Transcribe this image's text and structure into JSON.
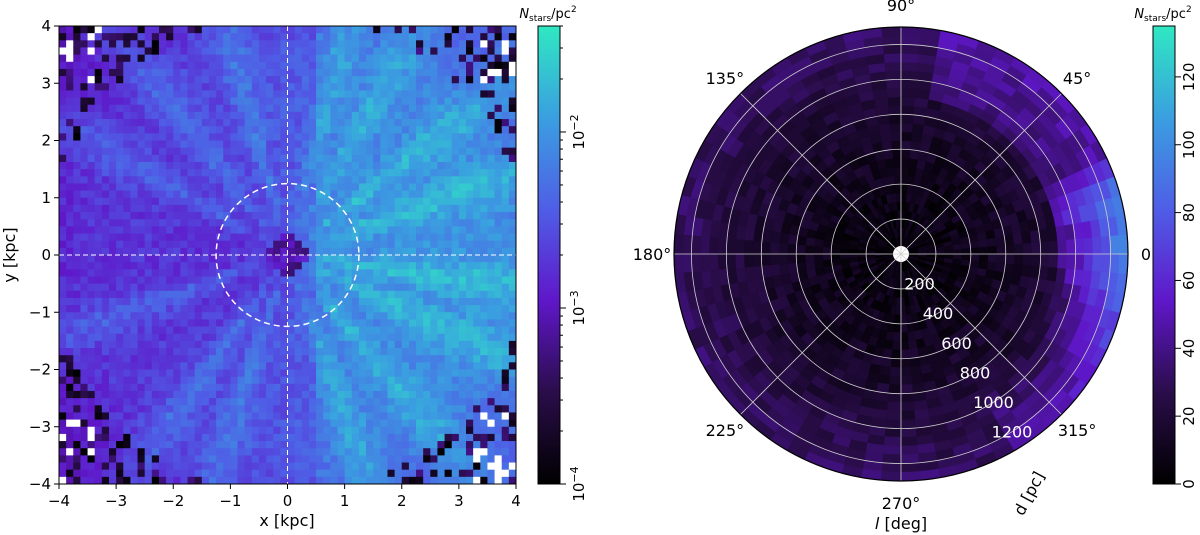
{
  "chart_data": [
    {
      "type": "heatmap",
      "xlabel": "x [kpc]",
      "ylabel": "y [kpc]",
      "xlim": [
        -4,
        4
      ],
      "ylim": [
        -4,
        4
      ],
      "x_ticks": [
        "−4",
        "−3",
        "−2",
        "−1",
        "0",
        "1",
        "2",
        "3",
        "4"
      ],
      "y_ticks": [
        "−4",
        "−3",
        "−2",
        "−1",
        "0",
        "1",
        "2",
        "3",
        "4"
      ],
      "colorbar": {
        "scale": "log",
        "range": [
          0.0001,
          0.04
        ],
        "label_main": "N",
        "label_sub": "stars",
        "label_rest": "/pc",
        "label_sup": "2",
        "tick_labels": [
          {
            "value": 0.0001,
            "mant": "10",
            "exp": "−4"
          },
          {
            "value": 0.001,
            "mant": "10",
            "exp": "−3"
          },
          {
            "value": 0.01,
            "mant": "10",
            "exp": "−2"
          }
        ],
        "colormap": [
          "#000000",
          "#2a0d4a",
          "#5f17c9",
          "#4f5ee6",
          "#3a9fe0",
          "#2fe8c2"
        ]
      },
      "overlays": {
        "dashed_crosshair_at": [
          0,
          0
        ],
        "dashed_circle_radius_kpc": 1.25
      },
      "grid": false
    },
    {
      "type": "heatmap",
      "projection": "polar",
      "theta_label_main": "l",
      "theta_label_unit": " [deg]",
      "r_label": "d [pc]",
      "theta_ticks": [
        "0°",
        "45°",
        "90°",
        "135°",
        "180°",
        "225°",
        "270°",
        "315°"
      ],
      "r_ticks": [
        "200",
        "400",
        "600",
        "800",
        "1000",
        "1200"
      ],
      "r_max": 1300,
      "colorbar": {
        "scale": "linear",
        "range": [
          0,
          135
        ],
        "label_main": "N",
        "label_sub": "stars",
        "label_rest": "/pc",
        "label_sup": "2",
        "tick_labels": [
          "0",
          "20",
          "40",
          "60",
          "80",
          "100",
          "120"
        ],
        "colormap": [
          "#000000",
          "#2a0d4a",
          "#5f17c9",
          "#4f5ee6",
          "#3a9fe0",
          "#2fe8c2"
        ]
      },
      "grid": true
    }
  ]
}
